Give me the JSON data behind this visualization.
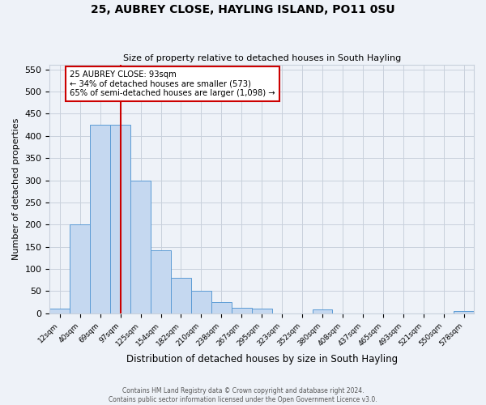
{
  "title": "25, AUBREY CLOSE, HAYLING ISLAND, PO11 0SU",
  "subtitle": "Size of property relative to detached houses in South Hayling",
  "xlabel": "Distribution of detached houses by size in South Hayling",
  "ylabel": "Number of detached properties",
  "bin_labels": [
    "12sqm",
    "40sqm",
    "69sqm",
    "97sqm",
    "125sqm",
    "154sqm",
    "182sqm",
    "210sqm",
    "238sqm",
    "267sqm",
    "295sqm",
    "323sqm",
    "352sqm",
    "380sqm",
    "408sqm",
    "437sqm",
    "465sqm",
    "493sqm",
    "521sqm",
    "550sqm",
    "578sqm"
  ],
  "bar_heights": [
    10,
    200,
    425,
    425,
    300,
    143,
    80,
    50,
    25,
    13,
    10,
    0,
    0,
    8,
    0,
    0,
    0,
    0,
    0,
    0,
    5
  ],
  "bar_color": "#c5d8f0",
  "bar_edge_color": "#5b9bd5",
  "vline_bin_index": 3,
  "vline_color": "#cc0000",
  "annotation_title": "25 AUBREY CLOSE: 93sqm",
  "annotation_line1": "← 34% of detached houses are smaller (573)",
  "annotation_line2": "65% of semi-detached houses are larger (1,098) →",
  "annotation_box_color": "#cc0000",
  "ylim": [
    0,
    560
  ],
  "yticks": [
    0,
    50,
    100,
    150,
    200,
    250,
    300,
    350,
    400,
    450,
    500,
    550
  ],
  "footer1": "Contains HM Land Registry data © Crown copyright and database right 2024.",
  "footer2": "Contains public sector information licensed under the Open Government Licence v3.0.",
  "bg_color": "#eef2f8",
  "grid_color": "#c8d0dc"
}
